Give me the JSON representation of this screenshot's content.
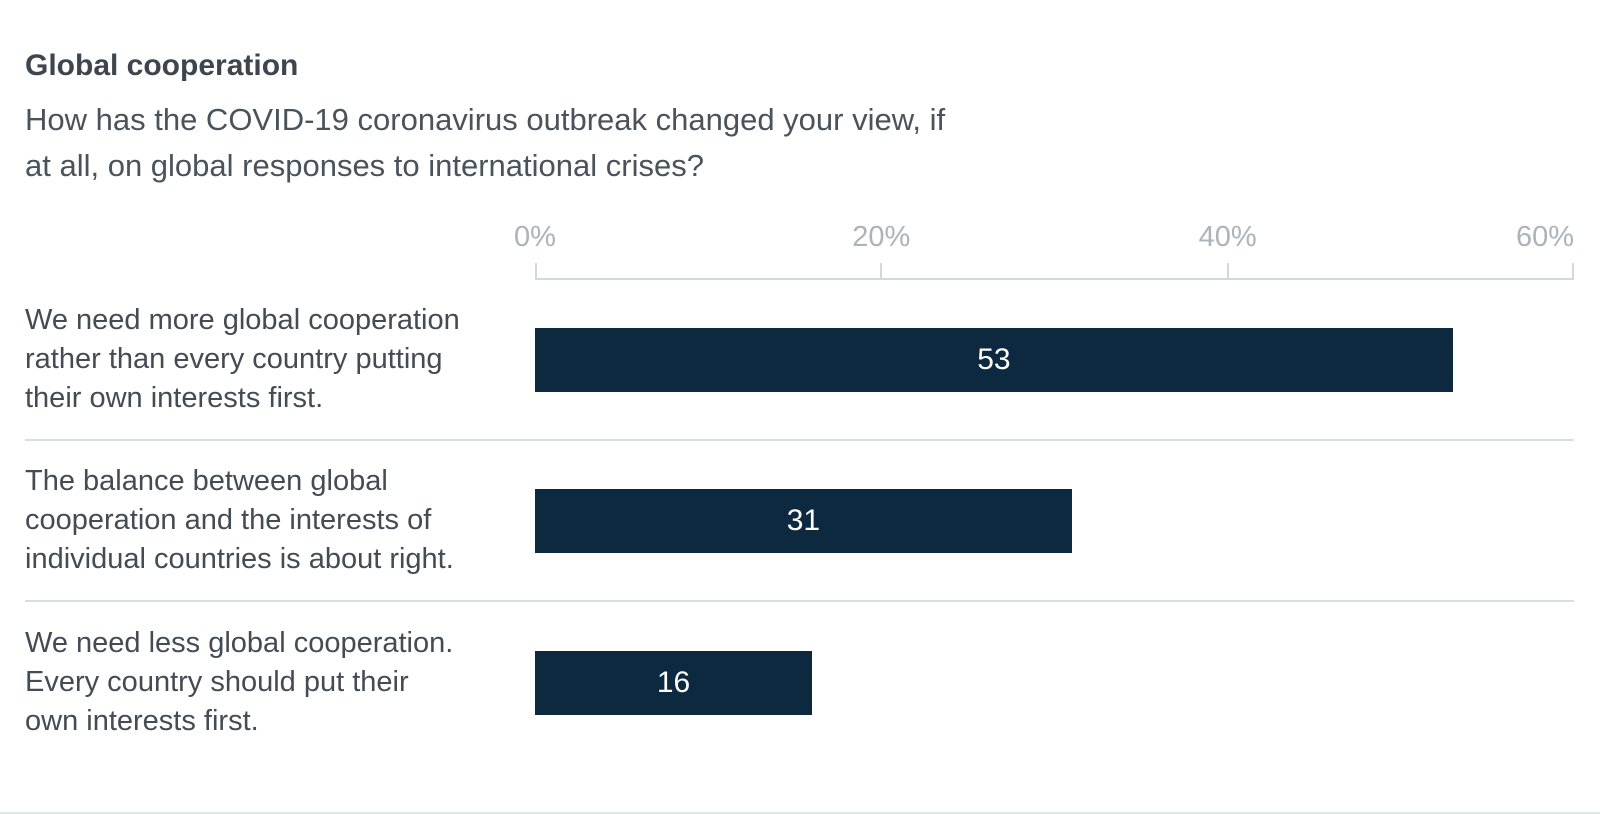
{
  "header": {
    "title": "Global cooperation",
    "subtitle_lines": [
      "How has the COVID-19 coronavirus outbreak changed your view, if",
      "at all, on global responses to international crises?"
    ]
  },
  "chart_data": {
    "type": "bar",
    "orientation": "horizontal",
    "title": "Global cooperation",
    "subtitle": "How has the COVID-19 coronavirus outbreak changed your view, if at all, on global responses to international crises?",
    "categories": [
      "We need more global cooperation rather than every country putting their own interests first.",
      "The balance between global cooperation and the interests of individual countries is about right.",
      "We need less global cooperation. Every country should put their own interests first."
    ],
    "values": [
      53,
      31,
      16
    ],
    "xlabel": "",
    "xlim": [
      0,
      60
    ],
    "x_ticks": [
      "0%",
      "20%",
      "40%",
      "60%"
    ],
    "grid": "off",
    "value_labels_position": "inside-center",
    "bar_color": "#0c2940",
    "axis_text_color": "#abb3bb",
    "label_text_color": "#434c54",
    "value_text_color": "#ffffff"
  },
  "rows": [
    {
      "lines": [
        "We need more global cooperation",
        "rather than every country putting",
        "their own interests first."
      ]
    },
    {
      "lines": [
        "The balance between global",
        "cooperation and the interests of",
        "individual countries is about right."
      ]
    },
    {
      "lines": [
        "We need less global cooperation.",
        "Every country should put their",
        "own interests first."
      ]
    }
  ]
}
